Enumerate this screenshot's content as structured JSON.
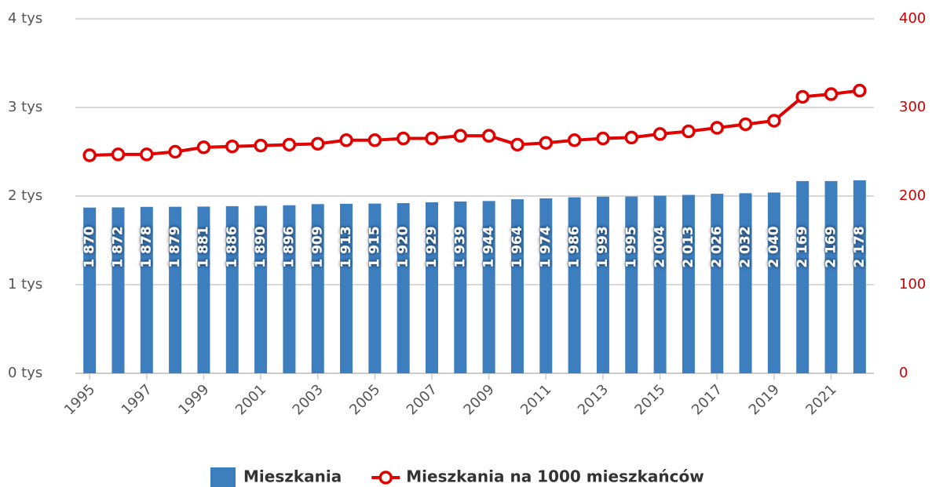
{
  "chart_data": {
    "type": "bar",
    "categories": [
      "1995",
      null,
      "1997",
      null,
      "1999",
      null,
      "2001",
      null,
      "2003",
      null,
      "2005",
      null,
      "2007",
      null,
      "2009",
      null,
      "2011",
      null,
      "2013",
      null,
      "2015",
      null,
      "2017",
      null,
      "2019",
      null,
      "2021",
      null
    ],
    "series": [
      {
        "name": "Mieszkania",
        "color": "#3d7ebf",
        "type": "bar",
        "values": [
          1870,
          1872,
          1878,
          1879,
          1881,
          1886,
          1890,
          1896,
          1909,
          1913,
          1915,
          1920,
          1929,
          1939,
          1944,
          1964,
          1974,
          1986,
          1993,
          1995,
          2004,
          2013,
          2026,
          2032,
          2040,
          2169,
          2169,
          2178
        ],
        "value_labels": [
          "1 870",
          "1 872",
          "1 878",
          "1 879",
          "1 881",
          "1 886",
          "1 890",
          "1 896",
          "1 909",
          "1 913",
          "1 915",
          "1 920",
          "1 929",
          "1 939",
          "1 944",
          "1 964",
          "1 974",
          "1 986",
          "1 993",
          "1 995",
          "2 004",
          "2 013",
          "2 026",
          "2 032",
          "2 040",
          "2 169",
          "2 169",
          "2 178"
        ]
      },
      {
        "name": "Mieszkania na 1000 mieszkańców",
        "color": "#e00000",
        "type": "line",
        "axis": "y2",
        "values": [
          246,
          247,
          247,
          250,
          255,
          256,
          257,
          258,
          259,
          263,
          263,
          265,
          265,
          268,
          268,
          258,
          260,
          263,
          265,
          266,
          270,
          273,
          277,
          281,
          285,
          312,
          315,
          319
        ]
      }
    ],
    "ylim": [
      0,
      4000
    ],
    "yticks": [
      {
        "value": 0,
        "label": "0 tys"
      },
      {
        "value": 1000,
        "label": "1 tys"
      },
      {
        "value": 2000,
        "label": "2 tys"
      },
      {
        "value": 3000,
        "label": "3 tys"
      },
      {
        "value": 4000,
        "label": "4 tys"
      }
    ],
    "y2lim": [
      0,
      400
    ],
    "y2ticks": [
      0,
      100,
      200,
      300,
      400
    ],
    "grid": true
  }
}
